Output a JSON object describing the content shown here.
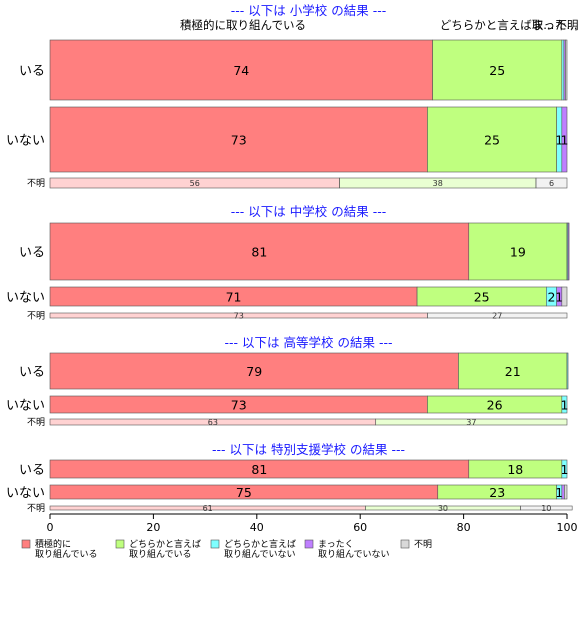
{
  "chart_data": {
    "type": "bar",
    "orientation": "horizontal",
    "stacked": true,
    "xlim": [
      0,
      100
    ],
    "xticks": [
      0,
      20,
      40,
      60,
      80,
      100
    ],
    "legend_position": "bottom",
    "legend": [
      {
        "label": "積極的に\n取り組んでいる",
        "color": "#ff7f7f"
      },
      {
        "label": "どちらかと言えば\n取り組んでいる",
        "color": "#bfff7f"
      },
      {
        "label": "どちらかと言えば\n取り組んでいない",
        "color": "#7fffff"
      },
      {
        "label": "まったく\n取り組んでいない",
        "color": "#bf7fff"
      },
      {
        "label": "不明",
        "color": "#d9d9d9"
      }
    ],
    "top_labels": [
      "積極的に取り組んでいる",
      "どちらかと言えば取...",
      "まった...",
      "不明"
    ],
    "sections": [
      {
        "title": "--- 以下は 小学校 の結果 ---",
        "rows": [
          {
            "label": "いる",
            "values": [
              74,
              25,
              0.4,
              0.3,
              0.3
            ],
            "labels": [
              "74",
              "25",
              "",
              "",
              ""
            ]
          },
          {
            "label": "いない",
            "values": [
              73,
              25,
              1,
              1,
              0
            ],
            "labels": [
              "73",
              "25",
              "1",
              "1",
              ""
            ]
          },
          {
            "label": "不明",
            "values": [
              56,
              38,
              0,
              0,
              6
            ],
            "labels": [
              "56",
              "38",
              "",
              "",
              "6"
            ]
          }
        ]
      },
      {
        "title": "--- 以下は 中学校 の結果 ---",
        "rows": [
          {
            "label": "いる",
            "values": [
              81,
              19,
              0.2,
              0.2,
              0
            ],
            "labels": [
              "81",
              "19",
              "",
              "",
              ""
            ]
          },
          {
            "label": "いない",
            "values": [
              71,
              25,
              2,
              1,
              1
            ],
            "labels": [
              "71",
              "25",
              "2",
              "1",
              ""
            ]
          },
          {
            "label": "不明",
            "values": [
              73,
              0,
              0,
              0,
              27
            ],
            "labels": [
              "73",
              "",
              "",
              "",
              "27"
            ]
          }
        ]
      },
      {
        "title": "--- 以下は 高等学校 の結果 ---",
        "rows": [
          {
            "label": "いる",
            "values": [
              79,
              21,
              0.2,
              0,
              0
            ],
            "labels": [
              "79",
              "21",
              "",
              "",
              ""
            ]
          },
          {
            "label": "いない",
            "values": [
              73,
              26,
              1,
              0,
              0
            ],
            "labels": [
              "73",
              "26",
              "1",
              "",
              ""
            ]
          },
          {
            "label": "不明",
            "values": [
              63,
              37,
              0,
              0,
              0
            ],
            "labels": [
              "63",
              "37",
              "",
              "",
              ""
            ]
          }
        ]
      },
      {
        "title": "--- 以下は 特別支援学校 の結果 ---",
        "rows": [
          {
            "label": "いる",
            "values": [
              81,
              18,
              1,
              0,
              0
            ],
            "labels": [
              "81",
              "18",
              "1",
              "",
              ""
            ]
          },
          {
            "label": "いない",
            "values": [
              75,
              23,
              1,
              0.5,
              0.5
            ],
            "labels": [
              "75",
              "23",
              "1",
              "",
              ""
            ]
          },
          {
            "label": "不明",
            "values": [
              61,
              30,
              0,
              0,
              10
            ],
            "labels": [
              "61",
              "30",
              "",
              "",
              "10"
            ]
          }
        ]
      }
    ]
  }
}
